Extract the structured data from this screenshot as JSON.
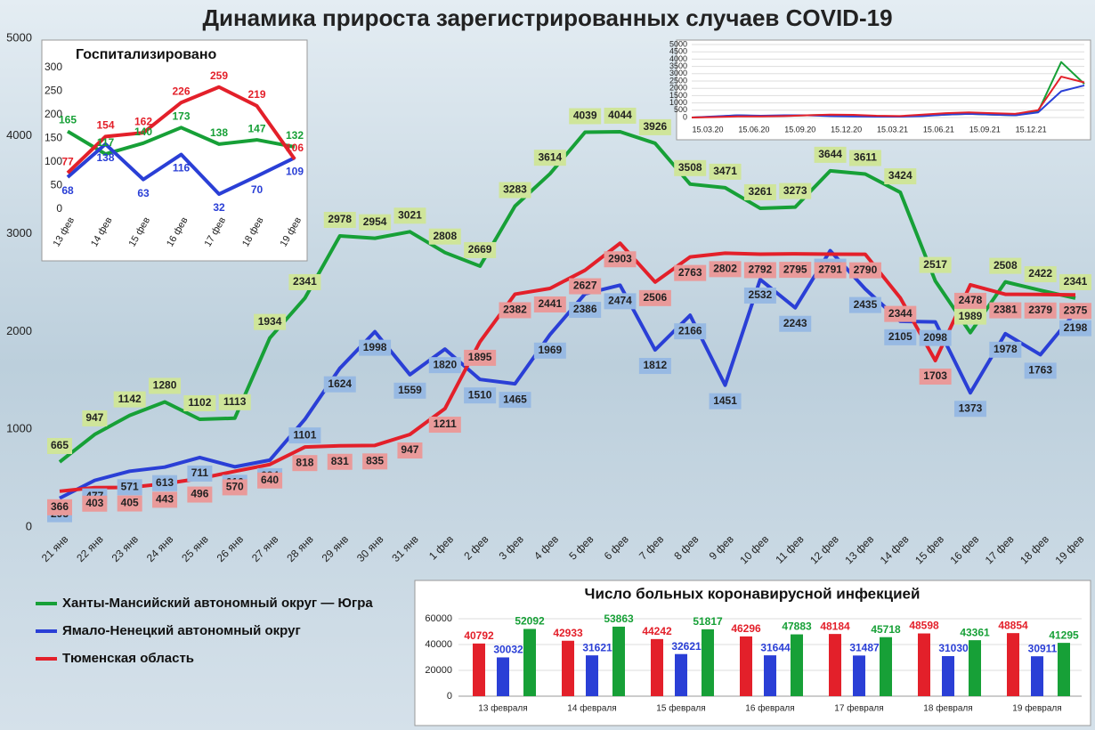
{
  "chart_data": [
    {
      "type": "line",
      "title": "Динамика прироста зарегистрированных случаев COVID-19",
      "categories": [
        "21 янв",
        "22 янв",
        "23 янв",
        "24 янв",
        "25 янв",
        "26 янв",
        "27 янв",
        "28 янв",
        "29 янв",
        "30 янв",
        "31 янв",
        "1 фев",
        "2 фев",
        "3 фев",
        "4 фев",
        "5 фев",
        "6 фев",
        "7 фев",
        "8 фев",
        "9 фев",
        "10 фев",
        "11 фев",
        "12 фев",
        "13 фев",
        "14 фев",
        "15 фев",
        "16 фев",
        "17 фев",
        "18 фев",
        "19 фев"
      ],
      "series": [
        {
          "name": "Ханты-Мансийский автономный округ — Югра",
          "color": "#17a037",
          "values": [
            665,
            947,
            1142,
            1280,
            1102,
            1113,
            1934,
            2341,
            2978,
            2954,
            3021,
            2808,
            2669,
            3283,
            3614,
            4039,
            4044,
            3926,
            3508,
            3471,
            3261,
            3273,
            3644,
            3611,
            3424,
            2517,
            1989,
            2508,
            2422,
            2341
          ]
        },
        {
          "name": "Ямало-Ненецкий автономный округ",
          "color": "#2a3fd6",
          "values": [
            295,
            477,
            571,
            613,
            711,
            616,
            684,
            1101,
            1624,
            1998,
            1559,
            1820,
            1510,
            1465,
            1969,
            2386,
            2474,
            1812,
            2166,
            1451,
            2532,
            2243,
            2827,
            2435,
            2105,
            2098,
            1373,
            1978,
            1763,
            2198
          ]
        },
        {
          "name": "Тюменская область",
          "color": "#e3202a",
          "values": [
            366,
            403,
            405,
            443,
            496,
            570,
            640,
            818,
            831,
            835,
            947,
            1211,
            1895,
            2382,
            2441,
            2627,
            2903,
            2506,
            2763,
            2802,
            2792,
            2795,
            2791,
            2790,
            2344,
            1703,
            2478,
            2381,
            2379,
            2375
          ]
        }
      ],
      "ylim": [
        0,
        5000
      ],
      "yticks": [
        0,
        1000,
        2000,
        3000,
        4000,
        5000
      ],
      "grid": false
    },
    {
      "type": "line",
      "title": "Госпитализировано",
      "categories": [
        "13 фев",
        "14 фев",
        "15 фев",
        "16 фев",
        "17 фев",
        "18 фев",
        "19 фев"
      ],
      "series": [
        {
          "color": "#17a037",
          "values": [
            165,
            117,
            140,
            173,
            138,
            147,
            132
          ]
        },
        {
          "color": "#2a3fd6",
          "values": [
            68,
            138,
            63,
            116,
            32,
            70,
            109
          ]
        },
        {
          "color": "#e3202a",
          "values": [
            77,
            154,
            162,
            226,
            259,
            219,
            106
          ]
        }
      ],
      "ylim": [
        0,
        300
      ],
      "yticks": [
        0,
        50,
        100,
        150,
        200,
        250,
        300
      ],
      "grid": false
    },
    {
      "type": "line",
      "categories": [
        "15.03.20",
        null,
        "15.06.20",
        null,
        "15.09.20",
        null,
        "15.12.20",
        null,
        "15.03.21",
        null,
        "15.06.21",
        null,
        "15.09.21",
        null,
        "15.12.21",
        null,
        null,
        null
      ],
      "series": [
        {
          "color": "#17a037",
          "values": [
            0,
            50,
            150,
            100,
            120,
            150,
            180,
            150,
            100,
            80,
            120,
            200,
            250,
            200,
            150,
            400,
            3800,
            2300
          ]
        },
        {
          "color": "#2a3fd6",
          "values": [
            0,
            80,
            150,
            120,
            150,
            150,
            100,
            80,
            60,
            60,
            100,
            200,
            250,
            200,
            150,
            350,
            1800,
            2200
          ]
        },
        {
          "color": "#e3202a",
          "values": [
            0,
            30,
            80,
            80,
            100,
            150,
            200,
            180,
            120,
            100,
            200,
            300,
            350,
            300,
            250,
            500,
            2800,
            2400
          ]
        }
      ],
      "ylim": [
        0,
        5000
      ],
      "yticks": [
        0,
        500,
        1000,
        1500,
        2000,
        2500,
        3000,
        3500,
        4000,
        4500,
        5000
      ],
      "grid": true
    },
    {
      "type": "bar",
      "title": "Число больных коронавирусной инфекцией",
      "categories": [
        "13 февраля",
        "14 февраля",
        "15 февраля",
        "16 февраля",
        "17 февраля",
        "18 февраля",
        "19 февраля"
      ],
      "series": [
        {
          "color": "#e3202a",
          "values": [
            40792,
            42933,
            44242,
            46296,
            48184,
            48598,
            48854
          ]
        },
        {
          "color": "#2a3fd6",
          "values": [
            30032,
            31621,
            32621,
            31644,
            31487,
            31030,
            30911
          ]
        },
        {
          "color": "#17a037",
          "values": [
            52092,
            53863,
            51817,
            47883,
            45718,
            43361,
            41295
          ]
        }
      ],
      "ylim": [
        0,
        60000
      ],
      "yticks": [
        0,
        20000,
        40000,
        60000
      ],
      "grid": true
    }
  ]
}
